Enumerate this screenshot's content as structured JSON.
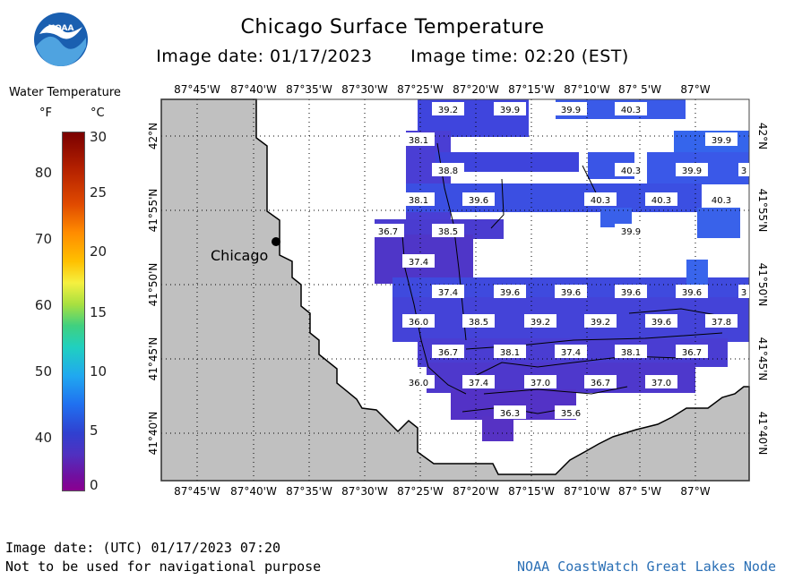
{
  "title": "Chicago Surface Temperature",
  "image_date_label": "Image date: 01/17/2023",
  "image_time_label": "Image time: 02:20 (EST)",
  "logo_text": "NOAA",
  "legend": {
    "title": "Water Temperature",
    "unit_f": "°F",
    "unit_c": "°C",
    "f_ticks": [
      "80",
      "70",
      "60",
      "50",
      "40"
    ],
    "c_ticks": [
      "30",
      "25",
      "20",
      "15",
      "10",
      "5",
      "0"
    ]
  },
  "map": {
    "city_label": "Chicago",
    "lon_labels": [
      "87°45'W",
      "87°40'W",
      "87°35'W",
      "87°30'W",
      "87°25'W",
      "87°20'W",
      "87°15'W",
      "87°10'W",
      "87° 5'W",
      "87°W"
    ],
    "lat_labels": [
      "42°N",
      "41°55'N",
      "41°50'N",
      "41°45'N",
      "41°40'N"
    ],
    "temperatures": [
      {
        "v": "39.2"
      },
      {
        "v": "39.9"
      },
      {
        "v": "39.9"
      },
      {
        "v": "40.3"
      },
      {
        "v": "38.1"
      },
      {
        "v": "39.9"
      },
      {
        "v": "38.8"
      },
      {
        "v": "40.3"
      },
      {
        "v": "39.9"
      },
      {
        "v": "3"
      },
      {
        "v": "38.1"
      },
      {
        "v": "39.6"
      },
      {
        "v": "40.3"
      },
      {
        "v": "40.3"
      },
      {
        "v": "40.3"
      },
      {
        "v": "36.7"
      },
      {
        "v": "38.5"
      },
      {
        "v": "39.9"
      },
      {
        "v": "37.4"
      },
      {
        "v": "37.4"
      },
      {
        "v": "39.6"
      },
      {
        "v": "39.6"
      },
      {
        "v": "39.6"
      },
      {
        "v": "39.6"
      },
      {
        "v": "3"
      },
      {
        "v": "36.0"
      },
      {
        "v": "38.5"
      },
      {
        "v": "39.2"
      },
      {
        "v": "39.2"
      },
      {
        "v": "39.6"
      },
      {
        "v": "37.8"
      },
      {
        "v": "36.7"
      },
      {
        "v": "38.1"
      },
      {
        "v": "37.4"
      },
      {
        "v": "38.1"
      },
      {
        "v": "36.7"
      },
      {
        "v": "36.0"
      },
      {
        "v": "37.4"
      },
      {
        "v": "37.0"
      },
      {
        "v": "36.7"
      },
      {
        "v": "37.0"
      },
      {
        "v": "36.3"
      },
      {
        "v": "35.6"
      }
    ]
  },
  "footer": {
    "utc": "Image date: (UTC) 01/17/2023  07:20",
    "nav": "Not to be used for navigational purpose",
    "node": "NOAA CoastWatch Great Lakes Node"
  },
  "colors": {
    "land": "#c0c0c0",
    "water_cold": "#5030c0",
    "water_mid": "#3e3ad8",
    "water_warm": "#2f5cf0",
    "node_link": "#2a6fb5"
  }
}
